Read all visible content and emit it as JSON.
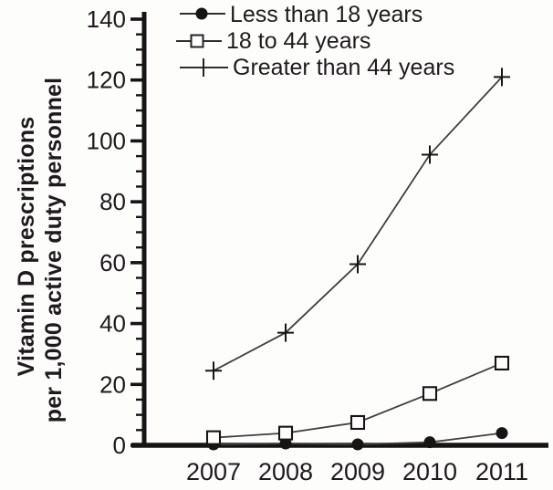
{
  "chart_data": {
    "type": "line",
    "title": "",
    "categories": [
      "2007",
      "2008",
      "2009",
      "2010",
      "2011"
    ],
    "series": [
      {
        "name": "Less than 18 years",
        "marker": "filled-circle",
        "values": [
          0.3,
          0.6,
          0.3,
          1.0,
          4.0
        ]
      },
      {
        "name": "18 to 44 years",
        "marker": "open-square",
        "values": [
          2.5,
          4.0,
          7.5,
          17.0,
          27.0
        ]
      },
      {
        "name": "Greater than 44 years",
        "marker": "plus",
        "values": [
          24.5,
          37.0,
          59.5,
          95.5,
          121.0
        ]
      }
    ],
    "xlabel": "",
    "ylabel_lines": [
      "Vitamin D prescriptions",
      "per 1,000 active duty personnel"
    ],
    "ylim": [
      0,
      140
    ],
    "ytick_step": 20,
    "yminor_step": 5,
    "ytick_labels": [
      "0",
      "20",
      "40",
      "60",
      "80",
      "100",
      "120",
      "140"
    ],
    "grid": false,
    "legend_position": "top-inside",
    "colors": {
      "line": "#3f3f3f",
      "marker": "#161414",
      "axis": "#161414",
      "text": "#1d1b1b"
    }
  }
}
